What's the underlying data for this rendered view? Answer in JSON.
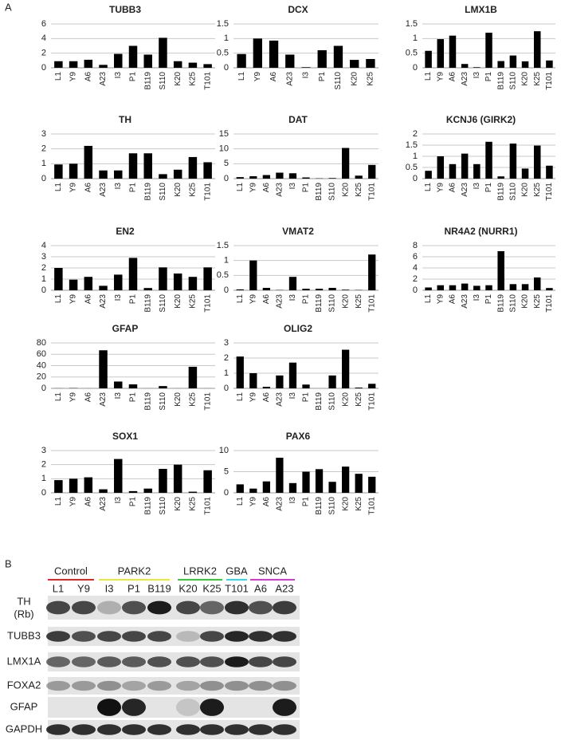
{
  "panels": {
    "a": "A",
    "b": "B"
  },
  "chart_data": [
    {
      "type": "bar",
      "title": "TUBB3",
      "categories": [
        "L1",
        "Y9",
        "A6",
        "A23",
        "I3",
        "P1",
        "B119",
        "S110",
        "K20",
        "K25",
        "T101"
      ],
      "values": [
        0.9,
        0.9,
        1.1,
        0.4,
        1.9,
        3.0,
        1.8,
        4.1,
        0.9,
        0.7,
        0.5
      ],
      "color": "#000000",
      "ylim": [
        0,
        6
      ],
      "yticks": [
        0,
        2,
        4,
        6
      ],
      "grid": true
    },
    {
      "type": "bar",
      "title": "DCX",
      "categories": [
        "L1",
        "Y9",
        "A6",
        "A23",
        "I3",
        "P1",
        "S110",
        "K20",
        "K25"
      ],
      "values": [
        0.47,
        1.0,
        0.93,
        0.45,
        0.02,
        0.6,
        0.75,
        0.27,
        0.3
      ],
      "color": "#000000",
      "ylim": [
        0,
        1.5
      ],
      "yticks": [
        0,
        0.5,
        1,
        1.5
      ],
      "grid": true
    },
    {
      "type": "bar",
      "title": "LMX1B",
      "categories": [
        "L1",
        "Y9",
        "A6",
        "A23",
        "I3",
        "P1",
        "B119",
        "S110",
        "K20",
        "K25",
        "T101"
      ],
      "values": [
        0.58,
        0.98,
        1.1,
        0.13,
        0.02,
        1.2,
        0.23,
        0.42,
        0.22,
        1.25,
        0.25
      ],
      "color": "#000000",
      "ylim": [
        0,
        1.5
      ],
      "yticks": [
        0,
        0.5,
        1,
        1.5
      ],
      "grid": true
    },
    {
      "type": "bar",
      "title": "TH",
      "categories": [
        "L1",
        "Y9",
        "A6",
        "A23",
        "I3",
        "P1",
        "B119",
        "S110",
        "K20",
        "K25",
        "T101"
      ],
      "values": [
        0.95,
        1.0,
        2.2,
        0.55,
        0.55,
        1.7,
        1.7,
        0.3,
        0.6,
        1.45,
        1.1
      ],
      "color": "#000000",
      "ylim": [
        0,
        3
      ],
      "yticks": [
        0,
        1,
        2,
        3
      ],
      "grid": true
    },
    {
      "type": "bar",
      "title": "DAT",
      "categories": [
        "L1",
        "Y9",
        "A6",
        "A23",
        "I3",
        "P1",
        "B119",
        "S110",
        "K20",
        "K25",
        "T101"
      ],
      "values": [
        0.5,
        0.8,
        1.2,
        2.0,
        1.8,
        0.4,
        0.1,
        0.2,
        10.3,
        1.0,
        4.6
      ],
      "color": "#000000",
      "ylim": [
        0,
        15
      ],
      "yticks": [
        0,
        5,
        10,
        15
      ],
      "grid": true
    },
    {
      "type": "bar",
      "title": "KCNJ6 (GIRK2)",
      "categories": [
        "L1",
        "Y9",
        "A6",
        "A23",
        "I3",
        "P1",
        "B119",
        "S110",
        "K20",
        "K25",
        "T101"
      ],
      "values": [
        0.35,
        1.0,
        0.65,
        1.12,
        0.65,
        1.65,
        0.1,
        1.57,
        0.45,
        1.48,
        0.58
      ],
      "color": "#000000",
      "ylim": [
        0,
        2
      ],
      "yticks": [
        0,
        0.5,
        1,
        1.5,
        2
      ],
      "grid": true
    },
    {
      "type": "bar",
      "title": "EN2",
      "categories": [
        "L1",
        "Y9",
        "A6",
        "A23",
        "I3",
        "P1",
        "B119",
        "S110",
        "K20",
        "K25",
        "T101"
      ],
      "values": [
        2.0,
        0.95,
        1.2,
        0.4,
        1.4,
        2.9,
        0.2,
        2.05,
        1.5,
        1.2,
        2.05
      ],
      "color": "#000000",
      "ylim": [
        0,
        4
      ],
      "yticks": [
        0,
        1,
        2,
        3,
        4
      ],
      "grid": true
    },
    {
      "type": "bar",
      "title": "VMAT2",
      "categories": [
        "L1",
        "Y9",
        "A6",
        "A23",
        "I3",
        "P1",
        "B119",
        "S110",
        "K20",
        "K25",
        "T101"
      ],
      "values": [
        0.03,
        1.0,
        0.08,
        0.01,
        0.45,
        0.05,
        0.05,
        0.08,
        0.02,
        0.01,
        1.2
      ],
      "color": "#000000",
      "ylim": [
        0,
        1.5
      ],
      "yticks": [
        0,
        0.5,
        1,
        1.5
      ],
      "grid": true
    },
    {
      "type": "bar",
      "title": "NR4A2 (NURR1)",
      "categories": [
        "L1",
        "Y9",
        "A6",
        "A23",
        "I3",
        "P1",
        "B119",
        "S110",
        "K20",
        "K25",
        "T101"
      ],
      "values": [
        0.5,
        0.9,
        0.9,
        1.2,
        0.8,
        0.9,
        7.0,
        1.1,
        1.1,
        2.3,
        0.4
      ],
      "color": "#000000",
      "ylim": [
        0,
        8
      ],
      "yticks": [
        0,
        2,
        4,
        6,
        8
      ],
      "grid": true
    },
    {
      "type": "bar",
      "title": "GFAP",
      "categories": [
        "L1",
        "Y9",
        "A6",
        "A23",
        "I3",
        "P1",
        "B119",
        "S110",
        "K20",
        "K25",
        "T101"
      ],
      "values": [
        0.2,
        0.5,
        0.1,
        67,
        12,
        7,
        0.1,
        4,
        0.1,
        38,
        0.1
      ],
      "color": "#000000",
      "ylim": [
        0,
        80
      ],
      "yticks": [
        0,
        20,
        40,
        60,
        80
      ],
      "grid": true
    },
    {
      "type": "bar",
      "title": "OLIG2",
      "categories": [
        "L1",
        "Y9",
        "A6",
        "A23",
        "I3",
        "P1",
        "B119",
        "S110",
        "K20",
        "K25",
        "T101"
      ],
      "values": [
        2.1,
        1.0,
        0.1,
        0.85,
        1.7,
        0.25,
        0,
        0.85,
        2.55,
        0.05,
        0.3
      ],
      "color": "#000000",
      "ylim": [
        0,
        3
      ],
      "yticks": [
        0,
        1,
        2,
        3
      ],
      "grid": true
    },
    {
      "type": "bar",
      "title": "SOX1",
      "categories": [
        "L1",
        "Y9",
        "A6",
        "A23",
        "I3",
        "P1",
        "B119",
        "S110",
        "K20",
        "K25",
        "T101"
      ],
      "values": [
        0.9,
        1.0,
        1.1,
        0.25,
        2.4,
        0.12,
        0.3,
        1.7,
        2.0,
        0.08,
        1.6
      ],
      "color": "#000000",
      "ylim": [
        0,
        3
      ],
      "yticks": [
        0,
        1,
        2,
        3
      ],
      "grid": true
    },
    {
      "type": "bar",
      "title": "PAX6",
      "categories": [
        "L1",
        "Y9",
        "A6",
        "A23",
        "I3",
        "P1",
        "B119",
        "S110",
        "K20",
        "K25",
        "T101"
      ],
      "values": [
        2.0,
        1.0,
        2.7,
        8.3,
        2.3,
        5.0,
        5.6,
        2.6,
        6.2,
        4.5,
        3.8
      ],
      "color": "#000000",
      "ylim": [
        0,
        10
      ],
      "yticks": [
        0,
        5,
        10
      ],
      "grid": true
    }
  ],
  "blot": {
    "groups": [
      {
        "name": "Control",
        "color": "#e02828",
        "lanes": [
          "L1",
          "Y9"
        ]
      },
      {
        "name": "PARK2",
        "color": "#e8e838",
        "lanes": [
          "I3",
          "P1",
          "B119"
        ]
      },
      {
        "name": "LRRK2",
        "color": "#38c838",
        "lanes": [
          "K20",
          "K25"
        ]
      },
      {
        "name": "GBA",
        "color": "#38d8e0",
        "lanes": [
          "T101"
        ]
      },
      {
        "name": "SNCA",
        "color": "#d838d8",
        "lanes": [
          "A6",
          "A23"
        ]
      }
    ],
    "rows": [
      {
        "label": "TH",
        "note": "(Rb)"
      },
      {
        "label": "TUBB3"
      },
      {
        "label": "LMX1A"
      },
      {
        "label": "FOXA2"
      },
      {
        "label": "GFAP"
      },
      {
        "label": "GAPDH"
      }
    ]
  }
}
